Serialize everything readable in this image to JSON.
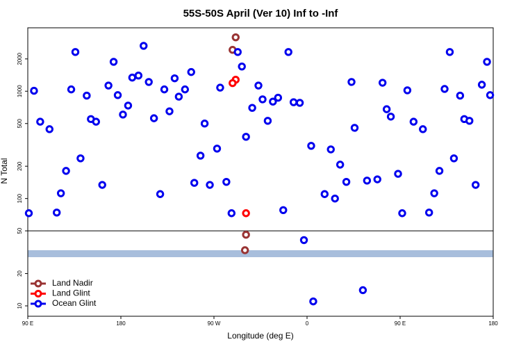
{
  "chart_data": {
    "type": "scatter",
    "title": "55S-50S April (Ver 10)   Inf to -Inf",
    "xlabel": "Longitude (deg E)",
    "ylabel": "N Total",
    "xlim": [
      90,
      540
    ],
    "xticks": [
      {
        "value": 90,
        "label": "90 E"
      },
      180,
      {
        "value": 270,
        "label": "90 W"
      },
      {
        "value": 360,
        "label": "0"
      },
      {
        "value": 450,
        "label": "90 E"
      },
      {
        "value": 540,
        "label": "180"
      }
    ],
    "ylim": [
      8,
      3900
    ],
    "log_y": true,
    "yticks": [
      10,
      20,
      50,
      100,
      200,
      500,
      1000,
      2000
    ],
    "hline": 50,
    "legend": "lower left",
    "series": [
      {
        "name": "Land Nadir",
        "color": "#993333",
        "x": [
          291,
          288,
          301,
          300
        ],
        "values": [
          3180,
          2430,
          46,
          33
        ]
      },
      {
        "name": "Land Glint",
        "color": "#ff0000",
        "x": [
          291,
          288,
          301
        ],
        "values": [
          1280,
          1190,
          73
        ]
      },
      {
        "name": "Ocean Glint",
        "color": "#0000ee",
        "x": [
          91,
          96,
          102,
          111,
          118,
          122,
          127,
          132,
          136,
          141,
          147,
          151,
          156,
          162,
          168,
          173,
          177,
          182,
          187,
          191,
          197,
          202,
          207,
          212,
          218,
          222,
          227,
          232,
          236,
          242,
          248,
          251,
          257,
          261,
          266,
          273,
          276,
          282,
          287,
          293,
          297,
          301,
          307,
          313,
          317,
          322,
          327,
          332,
          337,
          342,
          347,
          353,
          357,
          364,
          366,
          377,
          383,
          387,
          392,
          398,
          403,
          406,
          414,
          418,
          428,
          433,
          437,
          441,
          448,
          452,
          457,
          463,
          472,
          478,
          483,
          488,
          493,
          498,
          502,
          508,
          512,
          517,
          523,
          529,
          534,
          537
        ],
        "values": [
          73,
          1010,
          520,
          443,
          74,
          112,
          181,
          1040,
          2320,
          237,
          910,
          550,
          520,
          134,
          1130,
          1880,
          920,
          606,
          735,
          1340,
          1400,
          2650,
          1220,
          560,
          110,
          1040,
          650,
          1320,
          890,
          1040,
          1510,
          140,
          251,
          500,
          134,
          292,
          1080,
          143,
          73,
          2320,
          1700,
          376,
          700,
          1130,
          840,
          530,
          800,
          870,
          78,
          2320,
          790,
          780,
          41,
          310,
          11,
          110,
          287,
          100,
          207,
          143,
          1220,
          456,
          14,
          147,
          151,
          1200,
          680,
          580,
          170,
          73,
          1020,
          520,
          443,
          74,
          112,
          181,
          1050,
          2320,
          237,
          910,
          550,
          530,
          134,
          1150,
          1880,
          920
        ]
      }
    ]
  }
}
